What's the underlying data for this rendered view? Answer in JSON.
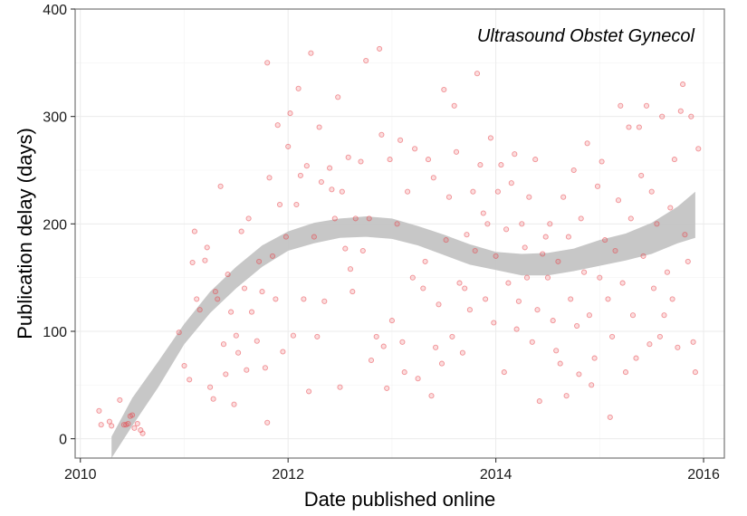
{
  "chart_data": {
    "type": "scatter",
    "annotation": "Ultrasound Obstet Gynecol",
    "xlabel": "Date published online",
    "ylabel": "Publication delay (days)",
    "xlim": [
      2009.95,
      2016.2
    ],
    "ylim": [
      -18,
      400
    ],
    "x_ticks": [
      2010,
      2012,
      2014,
      2016
    ],
    "x_tick_labels": [
      "2010",
      "2012",
      "2014",
      "2016"
    ],
    "y_ticks": [
      0,
      100,
      200,
      300,
      400
    ],
    "y_tick_labels": [
      "0",
      "100",
      "200",
      "300",
      "400"
    ],
    "grid": true,
    "legend": "none",
    "colors": {
      "points": "#e8434a",
      "band": "#c4c4c4",
      "border": "#7f7f7f",
      "grid": "#ebebeb"
    },
    "series": [
      {
        "kind": "points",
        "points": [
          [
            2010.18,
            26
          ],
          [
            2010.2,
            13
          ],
          [
            2010.28,
            16
          ],
          [
            2010.3,
            12
          ],
          [
            2010.38,
            36
          ],
          [
            2010.42,
            13
          ],
          [
            2010.44,
            13
          ],
          [
            2010.46,
            14
          ],
          [
            2010.48,
            21
          ],
          [
            2010.5,
            22
          ],
          [
            2010.52,
            10
          ],
          [
            2010.55,
            14
          ],
          [
            2010.58,
            8
          ],
          [
            2010.6,
            5
          ],
          [
            2010.95,
            99
          ],
          [
            2011.0,
            68
          ],
          [
            2011.05,
            55
          ],
          [
            2011.08,
            164
          ],
          [
            2011.1,
            193
          ],
          [
            2011.12,
            130
          ],
          [
            2011.15,
            120
          ],
          [
            2011.2,
            166
          ],
          [
            2011.22,
            178
          ],
          [
            2011.25,
            48
          ],
          [
            2011.28,
            37
          ],
          [
            2011.3,
            137
          ],
          [
            2011.32,
            130
          ],
          [
            2011.35,
            235
          ],
          [
            2011.38,
            88
          ],
          [
            2011.4,
            60
          ],
          [
            2011.42,
            153
          ],
          [
            2011.45,
            118
          ],
          [
            2011.48,
            32
          ],
          [
            2011.5,
            96
          ],
          [
            2011.52,
            80
          ],
          [
            2011.55,
            193
          ],
          [
            2011.58,
            140
          ],
          [
            2011.6,
            64
          ],
          [
            2011.62,
            205
          ],
          [
            2011.65,
            118
          ],
          [
            2011.7,
            91
          ],
          [
            2011.72,
            165
          ],
          [
            2011.75,
            137
          ],
          [
            2011.78,
            66
          ],
          [
            2011.8,
            350
          ],
          [
            2011.8,
            15
          ],
          [
            2011.82,
            243
          ],
          [
            2011.85,
            170
          ],
          [
            2011.88,
            130
          ],
          [
            2011.9,
            292
          ],
          [
            2011.92,
            218
          ],
          [
            2011.95,
            81
          ],
          [
            2011.98,
            188
          ],
          [
            2012.0,
            272
          ],
          [
            2012.02,
            303
          ],
          [
            2012.05,
            96
          ],
          [
            2012.08,
            218
          ],
          [
            2012.1,
            326
          ],
          [
            2012.12,
            245
          ],
          [
            2012.15,
            130
          ],
          [
            2012.18,
            254
          ],
          [
            2012.2,
            44
          ],
          [
            2012.22,
            359
          ],
          [
            2012.25,
            188
          ],
          [
            2012.28,
            95
          ],
          [
            2012.3,
            290
          ],
          [
            2012.32,
            239
          ],
          [
            2012.35,
            128
          ],
          [
            2012.4,
            252
          ],
          [
            2012.42,
            232
          ],
          [
            2012.45,
            205
          ],
          [
            2012.48,
            318
          ],
          [
            2012.5,
            48
          ],
          [
            2012.52,
            230
          ],
          [
            2012.55,
            177
          ],
          [
            2012.58,
            262
          ],
          [
            2012.6,
            158
          ],
          [
            2012.62,
            137
          ],
          [
            2012.65,
            205
          ],
          [
            2012.7,
            258
          ],
          [
            2012.72,
            175
          ],
          [
            2012.75,
            352
          ],
          [
            2012.78,
            205
          ],
          [
            2012.8,
            73
          ],
          [
            2012.85,
            95
          ],
          [
            2012.88,
            363
          ],
          [
            2012.9,
            283
          ],
          [
            2012.92,
            86
          ],
          [
            2012.95,
            47
          ],
          [
            2012.98,
            260
          ],
          [
            2013.0,
            110
          ],
          [
            2013.05,
            200
          ],
          [
            2013.08,
            278
          ],
          [
            2013.1,
            90
          ],
          [
            2013.12,
            62
          ],
          [
            2013.15,
            230
          ],
          [
            2013.2,
            150
          ],
          [
            2013.22,
            270
          ],
          [
            2013.25,
            56
          ],
          [
            2013.3,
            140
          ],
          [
            2013.32,
            165
          ],
          [
            2013.35,
            260
          ],
          [
            2013.38,
            40
          ],
          [
            2013.4,
            243
          ],
          [
            2013.42,
            85
          ],
          [
            2013.45,
            125
          ],
          [
            2013.48,
            70
          ],
          [
            2013.5,
            325
          ],
          [
            2013.52,
            185
          ],
          [
            2013.55,
            225
          ],
          [
            2013.58,
            95
          ],
          [
            2013.6,
            310
          ],
          [
            2013.62,
            267
          ],
          [
            2013.65,
            145
          ],
          [
            2013.68,
            80
          ],
          [
            2013.7,
            140
          ],
          [
            2013.72,
            190
          ],
          [
            2013.75,
            120
          ],
          [
            2013.78,
            230
          ],
          [
            2013.8,
            175
          ],
          [
            2013.82,
            340
          ],
          [
            2013.85,
            255
          ],
          [
            2013.88,
            210
          ],
          [
            2013.9,
            130
          ],
          [
            2013.92,
            200
          ],
          [
            2013.95,
            280
          ],
          [
            2013.98,
            108
          ],
          [
            2014.0,
            170
          ],
          [
            2014.02,
            230
          ],
          [
            2014.05,
            255
          ],
          [
            2014.08,
            62
          ],
          [
            2014.1,
            195
          ],
          [
            2014.12,
            145
          ],
          [
            2014.15,
            238
          ],
          [
            2014.18,
            265
          ],
          [
            2014.2,
            102
          ],
          [
            2014.22,
            128
          ],
          [
            2014.25,
            200
          ],
          [
            2014.28,
            178
          ],
          [
            2014.3,
            150
          ],
          [
            2014.32,
            225
          ],
          [
            2014.35,
            90
          ],
          [
            2014.38,
            260
          ],
          [
            2014.4,
            120
          ],
          [
            2014.42,
            35
          ],
          [
            2014.45,
            172
          ],
          [
            2014.48,
            188
          ],
          [
            2014.5,
            150
          ],
          [
            2014.52,
            200
          ],
          [
            2014.55,
            110
          ],
          [
            2014.58,
            82
          ],
          [
            2014.6,
            165
          ],
          [
            2014.62,
            70
          ],
          [
            2014.65,
            225
          ],
          [
            2014.68,
            40
          ],
          [
            2014.7,
            188
          ],
          [
            2014.72,
            130
          ],
          [
            2014.75,
            250
          ],
          [
            2014.78,
            105
          ],
          [
            2014.8,
            60
          ],
          [
            2014.82,
            205
          ],
          [
            2014.85,
            155
          ],
          [
            2014.88,
            275
          ],
          [
            2014.9,
            115
          ],
          [
            2014.92,
            50
          ],
          [
            2014.95,
            75
          ],
          [
            2014.98,
            235
          ],
          [
            2015.0,
            150
          ],
          [
            2015.02,
            258
          ],
          [
            2015.05,
            185
          ],
          [
            2015.08,
            130
          ],
          [
            2015.1,
            20
          ],
          [
            2015.12,
            95
          ],
          [
            2015.15,
            175
          ],
          [
            2015.18,
            222
          ],
          [
            2015.2,
            310
          ],
          [
            2015.22,
            145
          ],
          [
            2015.25,
            62
          ],
          [
            2015.28,
            290
          ],
          [
            2015.3,
            205
          ],
          [
            2015.32,
            115
          ],
          [
            2015.35,
            75
          ],
          [
            2015.38,
            290
          ],
          [
            2015.4,
            245
          ],
          [
            2015.42,
            170
          ],
          [
            2015.45,
            310
          ],
          [
            2015.48,
            88
          ],
          [
            2015.5,
            230
          ],
          [
            2015.52,
            140
          ],
          [
            2015.55,
            200
          ],
          [
            2015.58,
            95
          ],
          [
            2015.6,
            300
          ],
          [
            2015.62,
            115
          ],
          [
            2015.65,
            155
          ],
          [
            2015.68,
            215
          ],
          [
            2015.7,
            130
          ],
          [
            2015.72,
            260
          ],
          [
            2015.75,
            85
          ],
          [
            2015.78,
            305
          ],
          [
            2015.8,
            330
          ],
          [
            2015.82,
            190
          ],
          [
            2015.85,
            165
          ],
          [
            2015.88,
            300
          ],
          [
            2015.9,
            90
          ],
          [
            2015.92,
            62
          ],
          [
            2015.95,
            270
          ]
        ]
      },
      {
        "kind": "band",
        "x": [
          2010.3,
          2010.5,
          2010.75,
          2011.0,
          2011.25,
          2011.5,
          2011.75,
          2012.0,
          2012.25,
          2012.5,
          2012.75,
          2013.0,
          2013.25,
          2013.5,
          2013.75,
          2014.0,
          2014.25,
          2014.5,
          2014.75,
          2015.0,
          2015.25,
          2015.5,
          2015.75,
          2015.92
        ],
        "lower": [
          -18,
          12,
          48,
          88,
          117,
          140,
          160,
          175,
          182,
          187,
          188,
          186,
          180,
          171,
          162,
          157,
          152,
          152,
          156,
          161,
          166,
          172,
          182,
          187
        ],
        "upper": [
          2,
          38,
          72,
          107,
          137,
          160,
          180,
          193,
          201,
          205,
          207,
          205,
          198,
          190,
          181,
          174,
          172,
          173,
          177,
          185,
          191,
          201,
          216,
          230
        ]
      }
    ]
  }
}
